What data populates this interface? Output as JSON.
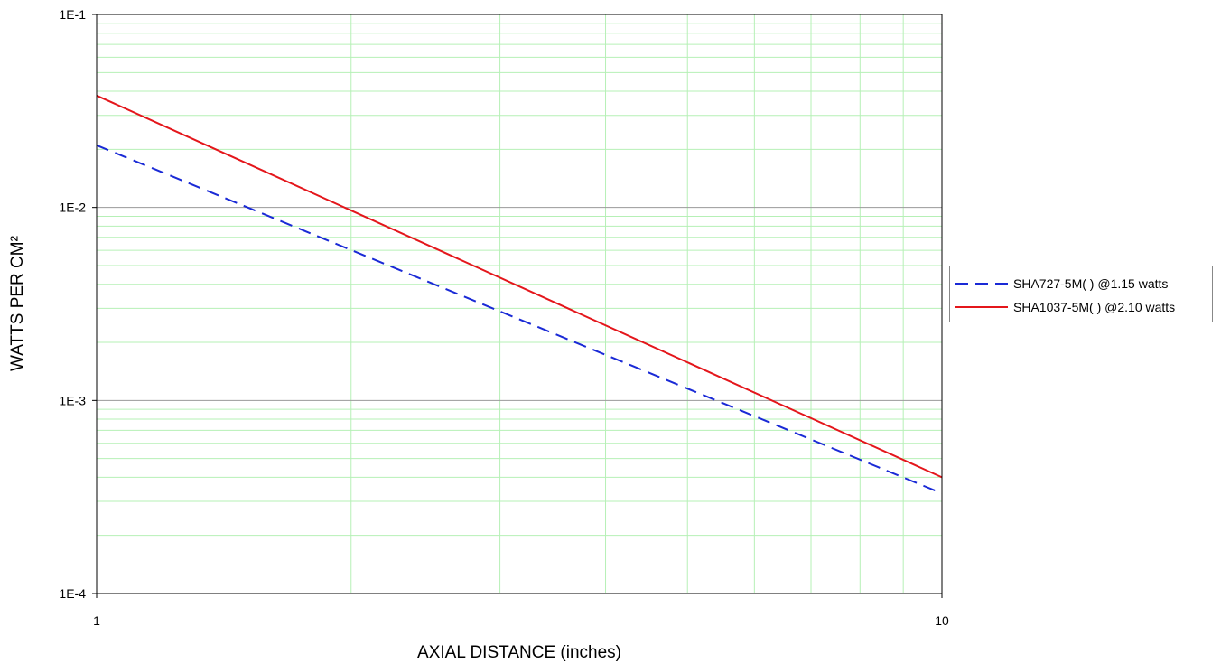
{
  "chart_data": {
    "type": "line",
    "title": "",
    "xlabel": "AXIAL DISTANCE (inches)",
    "ylabel": "WATTS PER CM²",
    "xscale": "log",
    "yscale": "log",
    "xlim": [
      1,
      10
    ],
    "ylim": [
      0.0001,
      0.1
    ],
    "x_ticks": [
      {
        "value": 1,
        "label": "1"
      },
      {
        "value": 10,
        "label": "10"
      }
    ],
    "y_ticks": [
      {
        "value": 0.1,
        "label": "1E-1"
      },
      {
        "value": 0.01,
        "label": "1E-2"
      },
      {
        "value": 0.001,
        "label": "1E-3"
      },
      {
        "value": 0.0001,
        "label": "1E-4"
      }
    ],
    "grid": true,
    "legend_position": "right",
    "series": [
      {
        "name": "SHA727-5M( ) @1.15 watts",
        "color": "#1a2ad6",
        "style": "dashed",
        "x": [
          1,
          10
        ],
        "y": [
          0.021,
          0.00033
        ]
      },
      {
        "name": "SHA1037-5M( ) @2.10 watts",
        "color": "#e4161b",
        "style": "solid",
        "x": [
          1,
          10
        ],
        "y": [
          0.038,
          0.0004
        ]
      }
    ]
  }
}
